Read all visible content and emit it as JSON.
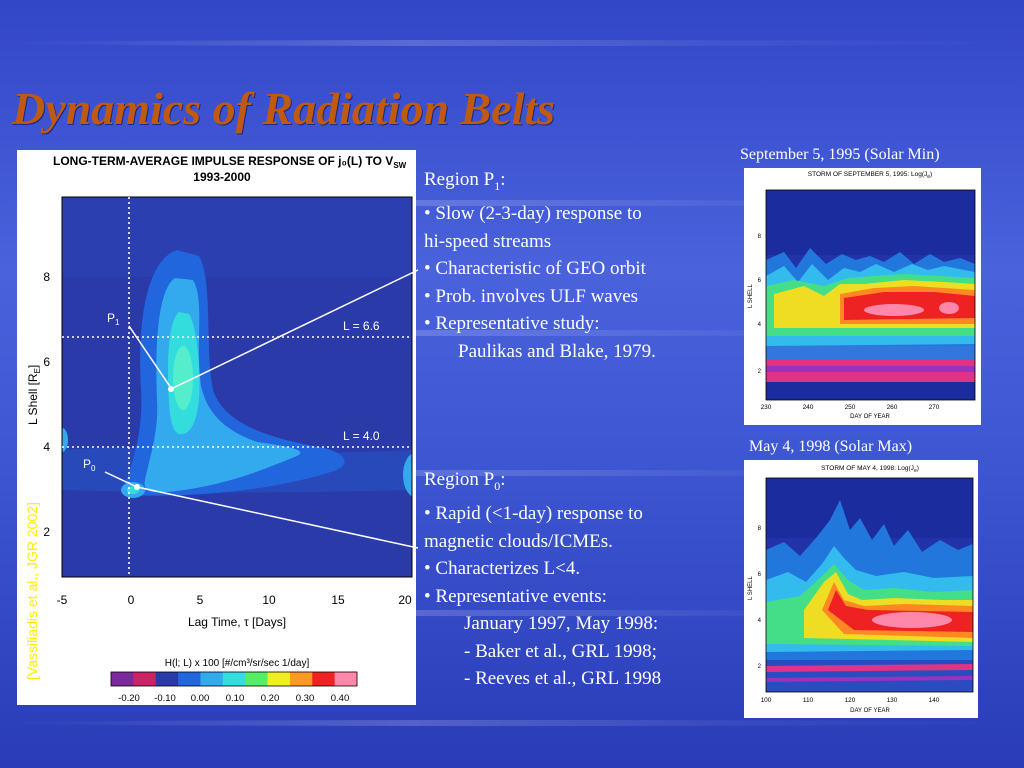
{
  "slide": {
    "title": "Dynamics of Radiation Belts",
    "credit": "[Vassiliadis et al., JGR 2002]"
  },
  "main_figure": {
    "title_line1": "LONG-TERM-AVERAGE IMPULSE RESPONSE OF j₀(L) TO V",
    "title_sub": "SW",
    "title_line2": "1993-2000",
    "y_axis_label": "L Shell [R",
    "y_axis_label_sub": "E",
    "y_axis_label_end": "]",
    "x_axis_label": "Lag Time, τ [Days]",
    "x_ticks": [
      "-5",
      "0",
      "5",
      "10",
      "15",
      "20"
    ],
    "y_ticks": [
      "8",
      "6",
      "4",
      "2"
    ],
    "ref_lines": [
      "L = 6.6",
      "L = 4.0"
    ],
    "p1_label": "P",
    "p1_sub": "1",
    "p0_label": "P",
    "p0_sub": "0",
    "colorbar_title": "H(l; L) x 100 [#/cm³/sr/sec 1/day]",
    "colorbar_ticks": [
      "-0.20",
      "-0.10",
      "0.00",
      "0.10",
      "0.20",
      "0.30",
      "0.40"
    ],
    "colorbar_colors": [
      "#7a2a9a",
      "#cc2266",
      "#2a3aa8",
      "#2266dd",
      "#33aaee",
      "#33dddd",
      "#55ee66",
      "#eeee22",
      "#ff9922",
      "#ee2222",
      "#ff88aa"
    ]
  },
  "region_p1": {
    "heading": "Region P",
    "heading_sub": "1",
    "heading_end": ":",
    "lines": [
      "• Slow (2-3-day) response to",
      "hi-speed streams",
      "• Characteristic of GEO orbit",
      "• Prob. involves ULF waves",
      "• Representative study:",
      "Paulikas and Blake, 1979."
    ]
  },
  "region_p0": {
    "heading": "Region P",
    "heading_sub": "0",
    "heading_end": ":",
    "lines": [
      "• Rapid (<1-day) response to",
      "magnetic clouds/ICMEs.",
      "• Characterizes L<4.",
      "• Representative events:",
      "January 1997, May 1998:",
      "- Baker et al., GRL 1998;",
      "- Reeves et al., GRL 1998"
    ]
  },
  "storm_1995": {
    "caption": "September 5, 1995  (Solar Min)",
    "plot_title": "STORM OF SEPTEMBER 5, 1995: Log(J",
    "plot_title_sub": "e",
    "plot_title_end": ")",
    "y_label": "L SHELL",
    "x_label": "DAY OF YEAR",
    "x_ticks": [
      "230",
      "240",
      "250",
      "260",
      "270"
    ],
    "y_ticks": [
      "8",
      "6",
      "4",
      "2"
    ]
  },
  "storm_1998": {
    "caption": "May 4, 1998 (Solar Max)",
    "plot_title": "STORM OF MAY 4, 1998: Log(J",
    "plot_title_sub": "e",
    "plot_title_end": ")",
    "y_label": "L SHELL",
    "x_label": "DAY OF YEAR",
    "x_ticks": [
      "100",
      "110",
      "120",
      "130",
      "140"
    ],
    "y_ticks": [
      "8",
      "6",
      "4",
      "2"
    ]
  }
}
